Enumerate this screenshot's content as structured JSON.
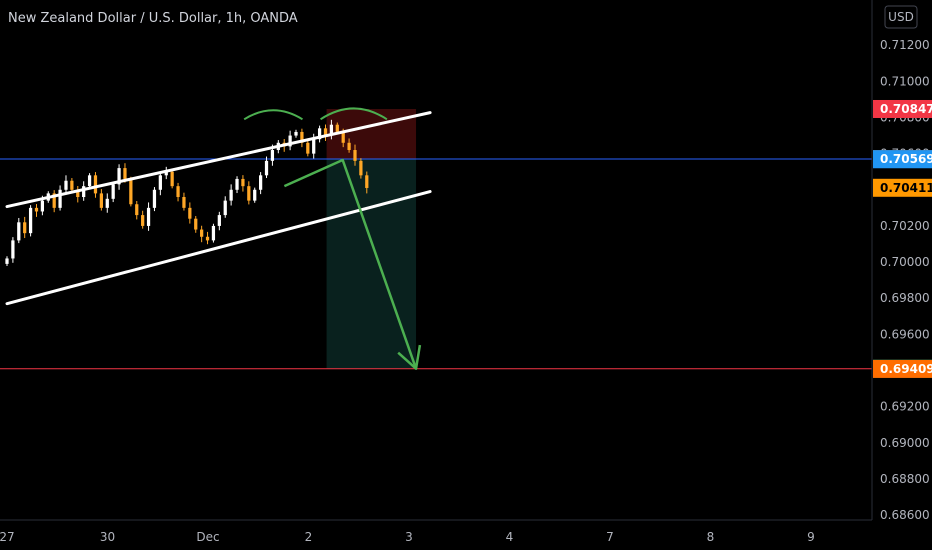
{
  "header": {
    "title": "New Zealand Dollar / U.S. Dollar, 1h, OANDA"
  },
  "currency_button": "USD",
  "chart_data": {
    "type": "candlestick",
    "symbol": "NZDUSD",
    "interval": "1h",
    "source": "OANDA",
    "xlabel": "",
    "ylabel": "",
    "x_tick_labels": [
      "27",
      "30",
      "Dec",
      "2",
      "3",
      "4",
      "7",
      "8",
      "9"
    ],
    "x_tick_days": [
      0,
      1,
      2,
      3,
      4,
      5,
      6,
      7,
      8
    ],
    "y_tick_labels": [
      "0.71200",
      "0.71000",
      "0.70800",
      "0.70600",
      "0.70400",
      "0.70200",
      "0.70000",
      "0.69800",
      "0.69600",
      "0.69400",
      "0.69200",
      "0.69000",
      "0.68800",
      "0.68600"
    ],
    "ylim": [
      0.68573,
      0.7145
    ],
    "candle_day_range": [
      0.0,
      3.58
    ],
    "candle_closes": [
      0.7002,
      0.7012,
      0.7022,
      0.7016,
      0.703,
      0.7028,
      0.7034,
      0.7038,
      0.703,
      0.704,
      0.7045,
      0.704,
      0.7036,
      0.7042,
      0.7048,
      0.7038,
      0.703,
      0.7035,
      0.7043,
      0.7052,
      0.7046,
      0.7032,
      0.7026,
      0.702,
      0.703,
      0.704,
      0.7048,
      0.705,
      0.7042,
      0.7036,
      0.703,
      0.7024,
      0.7018,
      0.7014,
      0.7012,
      0.702,
      0.7026,
      0.7034,
      0.704,
      0.7046,
      0.7042,
      0.7034,
      0.704,
      0.7048,
      0.7056,
      0.7062,
      0.7066,
      0.7064,
      0.707,
      0.7072,
      0.7066,
      0.706,
      0.7068,
      0.7074,
      0.707,
      0.7076,
      0.7072,
      0.7066,
      0.7062,
      0.7056,
      0.7048,
      0.7041
    ],
    "price_levels": [
      {
        "name": "entry",
        "value": 0.7057,
        "color": "#2962ff"
      },
      {
        "name": "target",
        "value": 0.6941,
        "color": "#f23645"
      }
    ],
    "price_tags": [
      {
        "label": "0.70847",
        "value": 0.70847,
        "bg": "#f23645",
        "fg": "#ffffff"
      },
      {
        "label": "0.70570",
        "value": 0.7057,
        "bg": "#787b86",
        "fg": "#ffffff"
      },
      {
        "label": "0.70569",
        "value": 0.70569,
        "bg": "#2196f3",
        "fg": "#ffffff"
      },
      {
        "label": "0.70411",
        "value": 0.70411,
        "bg": "#ff9800",
        "fg": "#000000"
      },
      {
        "label": "0.69410",
        "value": 0.6941,
        "bg": "#089981",
        "fg": "#ffffff"
      },
      {
        "label": "0.69409",
        "value": 0.69409,
        "bg": "#ff6d00",
        "fg": "#ffffff"
      }
    ],
    "short_position": {
      "day_start": 3.18,
      "day_end": 4.07,
      "entry": 0.7057,
      "stop": 0.70847,
      "target": 0.6941
    },
    "channel": {
      "upper": [
        {
          "day": 0.0,
          "price": 0.70307
        },
        {
          "day": 4.21,
          "price": 0.70827
        }
      ],
      "lower": [
        {
          "day": 0.0,
          "price": 0.6977
        },
        {
          "day": 4.21,
          "price": 0.7039
        }
      ]
    },
    "arrow": [
      {
        "day": 2.76,
        "price": 0.7042
      },
      {
        "day": 3.34,
        "price": 0.70565
      },
      {
        "day": 4.07,
        "price": 0.6941
      }
    ],
    "top_arcs": [
      {
        "day_start": 2.36,
        "day_end": 2.94,
        "base": 0.7079,
        "peak": 0.7084
      },
      {
        "day_start": 3.12,
        "day_end": 3.78,
        "base": 0.7079,
        "peak": 0.7085
      }
    ],
    "colors": {
      "background": "#000000",
      "candle_up": "#ffffff",
      "candle_down": "#ffa726",
      "channel": "#ffffff",
      "drawing": "#4caf50",
      "stop_zone": "rgba(120,20,20,0.5)",
      "target_zone": "rgba(16,60,55,0.55)"
    }
  }
}
